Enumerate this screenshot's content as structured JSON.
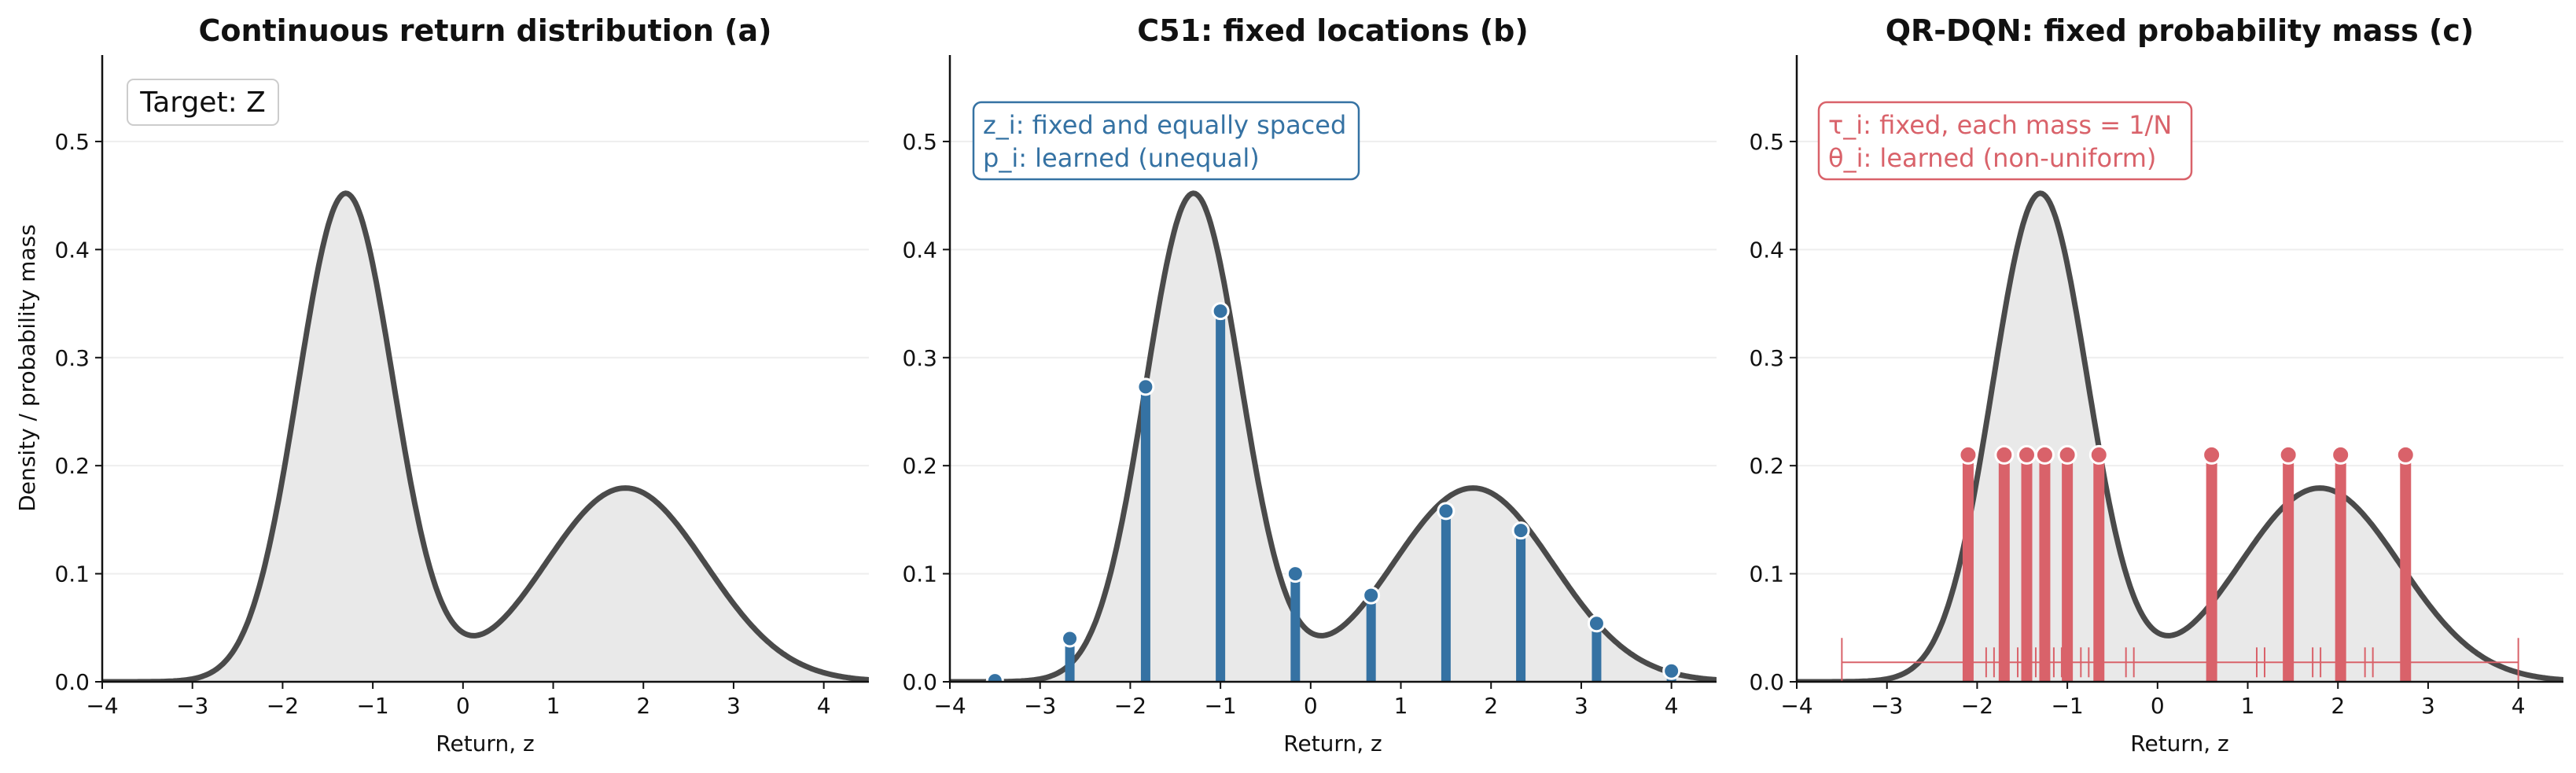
{
  "colors": {
    "curve": "#4a4a4a",
    "fill": "#e9e9e9",
    "c51": "#3572a3",
    "qr": "#d9626a",
    "grid": "#eeeeee"
  },
  "figure": {
    "ylabel": "Density / probability mass"
  },
  "panels": [
    {
      "title": "Continuous return distribution (a)",
      "xlabel": "Return, z",
      "annotation": {
        "text": "Target: Z"
      }
    },
    {
      "title": "C51: fixed locations (b)",
      "xlabel": "Return, z",
      "annotation": {
        "line1": "z_i: fixed and equally spaced",
        "line2": "p_i: learned (unequal)"
      }
    },
    {
      "title": "QR-DQN: fixed probability mass (c)",
      "xlabel": "Return, z",
      "annotation": {
        "line1": "τ_i: fixed, each mass = 1/N",
        "line2": "θ_i: learned (non-uniform)"
      }
    }
  ],
  "chart_data": [
    {
      "type": "area",
      "title": "Continuous return distribution (a)",
      "xlabel": "Return, z",
      "ylabel": "Density / probability mass",
      "xlim": [
        -4,
        4.5
      ],
      "ylim": [
        0,
        0.58
      ],
      "xticks": [
        -4,
        -3,
        -2,
        -1,
        0,
        1,
        2,
        3,
        4
      ],
      "yticks": [
        0.0,
        0.1,
        0.2,
        0.3,
        0.4,
        0.5
      ],
      "density": {
        "components": [
          {
            "weight": 0.6,
            "mean": -1.3,
            "sd": 0.53
          },
          {
            "weight": 0.4,
            "mean": 1.8,
            "sd": 0.89
          }
        ]
      },
      "annotation": "Target: Z"
    },
    {
      "type": "bar",
      "title": "C51: fixed locations (b)",
      "xlabel": "Return, z",
      "xlim": [
        -4,
        4.5
      ],
      "ylim": [
        0,
        0.58
      ],
      "xticks": [
        -4,
        -3,
        -2,
        -1,
        0,
        1,
        2,
        3,
        4
      ],
      "yticks": [
        0.0,
        0.1,
        0.2,
        0.3,
        0.4,
        0.5
      ],
      "atoms": {
        "x": [
          -3.5,
          -2.67,
          -1.83,
          -1.0,
          -0.17,
          0.67,
          1.5,
          2.33,
          3.17,
          4.0
        ],
        "p": [
          0.001,
          0.04,
          0.273,
          0.343,
          0.1,
          0.08,
          0.158,
          0.14,
          0.054,
          0.01
        ]
      }
    },
    {
      "type": "bar",
      "title": "QR-DQN: fixed probability mass (c)",
      "xlabel": "Return, z",
      "xlim": [
        -4,
        4.5
      ],
      "ylim": [
        0,
        0.58
      ],
      "xticks": [
        -4,
        -3,
        -2,
        -1,
        0,
        1,
        2,
        3,
        4
      ],
      "yticks": [
        0.0,
        0.1,
        0.2,
        0.3,
        0.4,
        0.5
      ],
      "quantiles": {
        "theta": [
          -2.1,
          -1.7,
          -1.45,
          -1.25,
          -1.0,
          -0.65,
          0.6,
          1.45,
          2.03,
          2.75
        ],
        "mass": 0.21
      },
      "quantile_boundaries": [
        -3.5,
        -1.9,
        -1.55,
        -1.35,
        -1.15,
        -0.85,
        -0.35,
        1.1,
        1.72,
        2.3,
        4.0
      ]
    }
  ]
}
